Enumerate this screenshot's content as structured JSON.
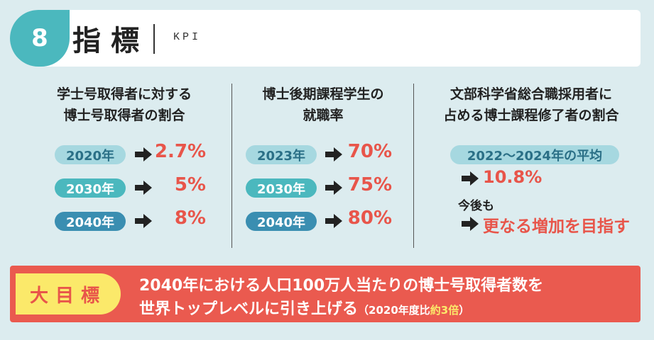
{
  "header": {
    "number": "8",
    "title": "指標",
    "subtitle": "KPI"
  },
  "columns": [
    {
      "heading_lines": [
        "学士号取得者に対する",
        "博士号取得者の割合"
      ],
      "rows": [
        {
          "year": "2020年",
          "value": "2.7%"
        },
        {
          "year": "2030年",
          "value": "5%"
        },
        {
          "year": "2040年",
          "value": "8%"
        }
      ]
    },
    {
      "heading_lines": [
        "博士後期課程学生の",
        "就職率"
      ],
      "rows": [
        {
          "year": "2023年",
          "value": "70%"
        },
        {
          "year": "2030年",
          "value": "75%"
        },
        {
          "year": "2040年",
          "value": "80%"
        }
      ]
    },
    {
      "heading_lines": [
        "文部科学省総合職採用者に",
        "占める博士課程修了者の割合"
      ],
      "period": "2022～2024年の平均",
      "value": "10.8%",
      "future_label": "今後も",
      "future_goal": "更なる増加を目指す"
    }
  ],
  "banner": {
    "tag": "大目標",
    "line1": "2040年における人口100万人当たりの博士号取得者数を",
    "line2": "世界トップレベルに引き上げる",
    "note_open": "（2020年度比",
    "note_accent": "約3倍",
    "note_close": "）"
  },
  "colors": {
    "teal": "#4bb8be",
    "red": "#e8554a",
    "yellow": "#fbe96a",
    "background": "#dcecef"
  }
}
